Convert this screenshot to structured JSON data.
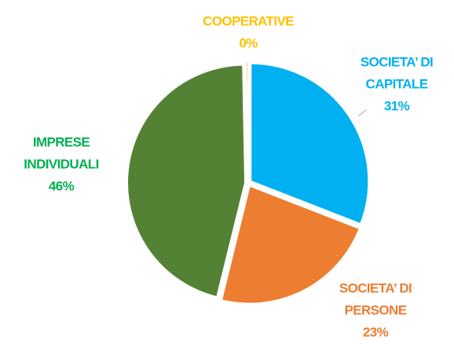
{
  "chart_data": {
    "type": "pie",
    "categories": [
      [
        "SOCIETA’ DI",
        "CAPITALE"
      ],
      [
        "SOCIETA’ DI",
        "PERSONE"
      ],
      [
        "IMPRESE",
        "INDIVIDUALI"
      ],
      [
        "COOPERATIVE"
      ]
    ],
    "values": [
      31,
      23,
      46,
      0.3
    ],
    "value_labels": [
      "31%",
      "23%",
      "46%",
      "0%"
    ],
    "colors": [
      "#00b0f0",
      "#ed7d31",
      "#548235",
      "#ffc000"
    ],
    "label_colors": [
      "#00b0f0",
      "#ed7d31",
      "#00b050",
      "#ffc000"
    ]
  }
}
